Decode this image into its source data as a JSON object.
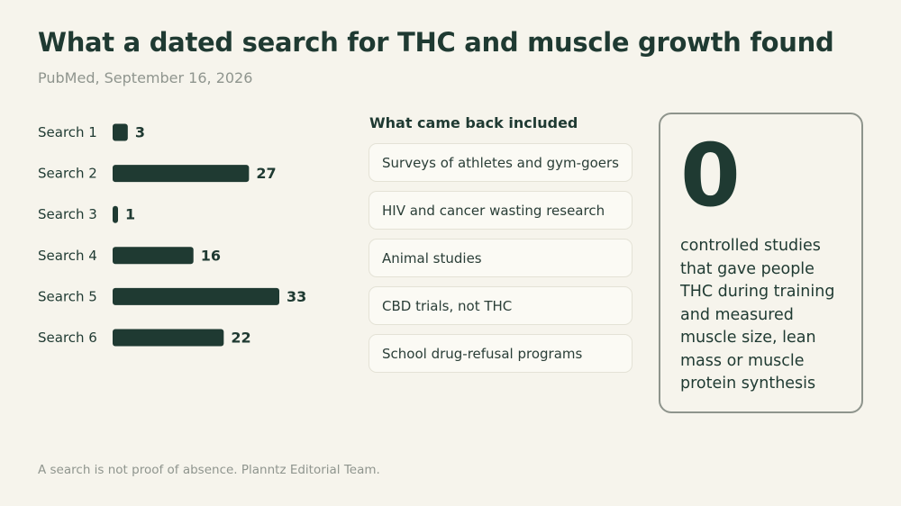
{
  "header": {
    "title": "What a dated search for THC and muscle growth found",
    "subtitle": "PubMed, September 16, 2026"
  },
  "chart_data": {
    "type": "bar",
    "orientation": "horizontal",
    "categories": [
      "Search 1",
      "Search 2",
      "Search 3",
      "Search 4",
      "Search 5",
      "Search 6"
    ],
    "values": [
      3,
      27,
      1,
      16,
      33,
      22
    ],
    "title": "",
    "xlabel": "",
    "ylabel": "",
    "xlim": [
      0,
      33
    ],
    "grid": false,
    "data_labels": true,
    "bar_color": "#1f3a32"
  },
  "included": {
    "title": "What came back included",
    "items": [
      "Surveys of athletes and gym-goers",
      "HIV and cancer wasting research",
      "Animal studies",
      "CBD trials, not THC",
      "School drug-refusal programs"
    ]
  },
  "stat": {
    "number": "0",
    "text": "controlled studies that gave people THC during training and measured muscle size, lean mass or muscle protein synthesis"
  },
  "footer": {
    "note": "A search is not proof of absence. Planntz Editorial Team."
  },
  "colors": {
    "background": "#f6f4ec",
    "text": "#1f3a32",
    "muted": "#8f958e"
  }
}
